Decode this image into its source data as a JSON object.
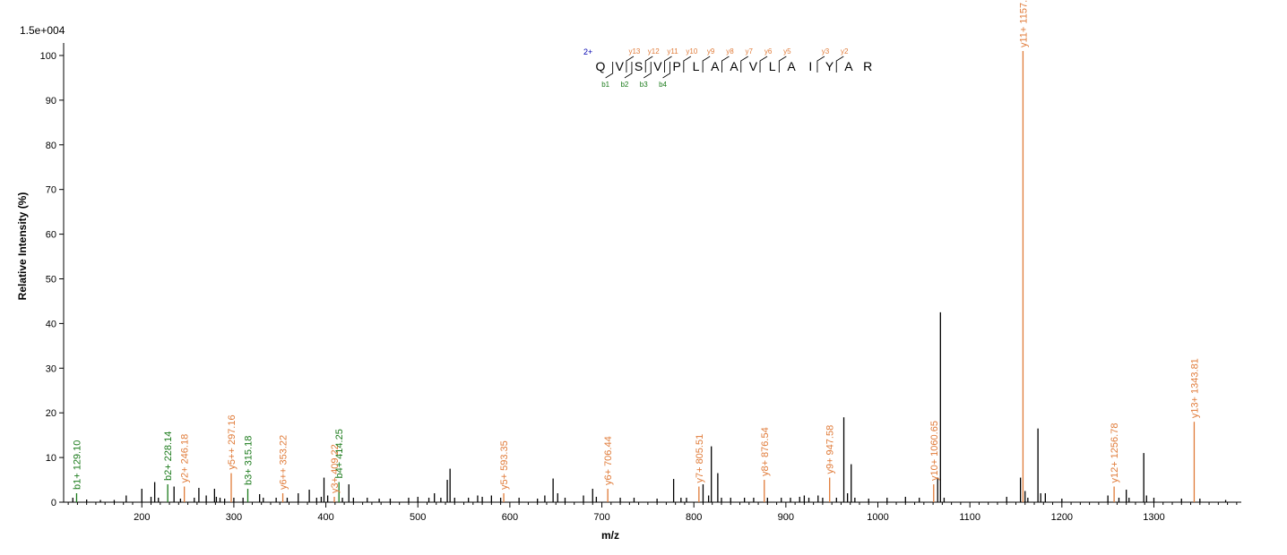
{
  "chart_data": {
    "type": "bar",
    "scale_label": "1.5e+004",
    "ylabel": "Relative   Intensity (%)",
    "xlabel": "m/z",
    "xlim": [
      115,
      1395
    ],
    "ylim": [
      0,
      102
    ],
    "xticks": [
      200,
      300,
      400,
      500,
      600,
      700,
      800,
      900,
      1000,
      1100,
      1200,
      1300
    ],
    "yticks": [
      0,
      10,
      20,
      30,
      40,
      50,
      60,
      70,
      80,
      90,
      100
    ],
    "colors": {
      "unlabeled": "#000000",
      "b_ion": "#1a7a1a",
      "y_ion": "#e07b39",
      "charge": "#0000b0"
    },
    "labeled_peaks": [
      {
        "mz": 129.1,
        "intensity": 2.0,
        "label": "b1+ 129.10",
        "type": "b"
      },
      {
        "mz": 228.14,
        "intensity": 4.0,
        "label": "b2+ 228.14",
        "type": "b"
      },
      {
        "mz": 246.18,
        "intensity": 3.5,
        "label": "y2+ 246.18",
        "type": "y"
      },
      {
        "mz": 297.16,
        "intensity": 6.5,
        "label": "y5++ 297.16",
        "type": "y"
      },
      {
        "mz": 315.18,
        "intensity": 3.0,
        "label": "b3+ 315.18",
        "type": "b"
      },
      {
        "mz": 353.22,
        "intensity": 2.0,
        "label": "y6++ 353.22",
        "type": "y"
      },
      {
        "mz": 409.22,
        "intensity": 1.2,
        "label": "y3+ 409.22",
        "type": "y"
      },
      {
        "mz": 414.25,
        "intensity": 4.5,
        "label": "b4+ 414.25",
        "type": "b"
      },
      {
        "mz": 593.35,
        "intensity": 2.0,
        "label": "y5+ 593.35",
        "type": "y"
      },
      {
        "mz": 706.44,
        "intensity": 3.0,
        "label": "y6+ 706.44",
        "type": "y"
      },
      {
        "mz": 805.51,
        "intensity": 3.5,
        "label": "y7+ 805.51",
        "type": "y"
      },
      {
        "mz": 876.54,
        "intensity": 5.0,
        "label": "y8+ 876.54",
        "type": "y"
      },
      {
        "mz": 947.58,
        "intensity": 5.5,
        "label": "y9+ 947.58",
        "type": "y"
      },
      {
        "mz": 1060.65,
        "intensity": 4.0,
        "label": "y10+ 1060.65",
        "type": "y"
      },
      {
        "mz": 1157.72,
        "intensity": 101.0,
        "label": "y11+ 1157.72",
        "type": "y"
      },
      {
        "mz": 1256.78,
        "intensity": 3.5,
        "label": "y12+ 1256.78",
        "type": "y"
      },
      {
        "mz": 1343.81,
        "intensity": 18.0,
        "label": "y13+ 1343.81",
        "type": "y"
      }
    ],
    "unlabeled_peaks": [
      [
        125,
        1.0
      ],
      [
        140,
        0.6
      ],
      [
        155,
        0.5
      ],
      [
        170,
        0.5
      ],
      [
        183,
        1.5
      ],
      [
        200,
        3.0
      ],
      [
        210,
        1.2
      ],
      [
        214,
        4.5
      ],
      [
        218,
        1.0
      ],
      [
        235,
        3.5
      ],
      [
        242,
        0.8
      ],
      [
        257,
        1.0
      ],
      [
        262,
        3.2
      ],
      [
        270,
        1.5
      ],
      [
        279,
        3.0
      ],
      [
        281,
        1.2
      ],
      [
        285,
        1.0
      ],
      [
        290,
        0.8
      ],
      [
        300,
        1.0
      ],
      [
        310,
        1.0
      ],
      [
        328,
        1.8
      ],
      [
        332,
        1.0
      ],
      [
        346,
        1.0
      ],
      [
        358,
        1.0
      ],
      [
        370,
        2.0
      ],
      [
        382,
        2.8
      ],
      [
        390,
        1.0
      ],
      [
        395,
        1.2
      ],
      [
        398,
        5.5
      ],
      [
        402,
        1.5
      ],
      [
        418,
        1.0
      ],
      [
        425,
        4.0
      ],
      [
        430,
        1.0
      ],
      [
        445,
        1.0
      ],
      [
        458,
        0.8
      ],
      [
        470,
        0.8
      ],
      [
        490,
        1.0
      ],
      [
        500,
        1.2
      ],
      [
        512,
        1.0
      ],
      [
        518,
        2.0
      ],
      [
        525,
        1.0
      ],
      [
        532,
        5.0
      ],
      [
        535,
        7.5
      ],
      [
        540,
        1.0
      ],
      [
        555,
        1.0
      ],
      [
        565,
        1.5
      ],
      [
        570,
        1.2
      ],
      [
        580,
        1.5
      ],
      [
        590,
        1.0
      ],
      [
        610,
        1.0
      ],
      [
        630,
        0.8
      ],
      [
        638,
        1.5
      ],
      [
        647,
        5.3
      ],
      [
        652,
        2.0
      ],
      [
        660,
        1.0
      ],
      [
        680,
        1.5
      ],
      [
        690,
        3.0
      ],
      [
        694,
        1.2
      ],
      [
        720,
        1.0
      ],
      [
        735,
        1.0
      ],
      [
        760,
        0.8
      ],
      [
        778,
        5.2
      ],
      [
        786,
        1.0
      ],
      [
        792,
        1.0
      ],
      [
        810,
        4.0
      ],
      [
        816,
        1.5
      ],
      [
        819,
        12.5
      ],
      [
        826,
        6.5
      ],
      [
        830,
        1.0
      ],
      [
        840,
        1.0
      ],
      [
        855,
        1.0
      ],
      [
        865,
        1.0
      ],
      [
        880,
        1.0
      ],
      [
        895,
        1.0
      ],
      [
        905,
        1.0
      ],
      [
        915,
        1.2
      ],
      [
        920,
        1.5
      ],
      [
        925,
        1.0
      ],
      [
        935,
        1.5
      ],
      [
        940,
        1.0
      ],
      [
        955,
        1.0
      ],
      [
        963,
        19.0
      ],
      [
        967,
        2.0
      ],
      [
        971,
        8.5
      ],
      [
        975,
        1.0
      ],
      [
        990,
        0.8
      ],
      [
        1010,
        1.0
      ],
      [
        1030,
        1.2
      ],
      [
        1045,
        1.0
      ],
      [
        1065,
        5.5
      ],
      [
        1068,
        42.5
      ],
      [
        1072,
        1.0
      ],
      [
        1140,
        1.2
      ],
      [
        1155,
        5.5
      ],
      [
        1160,
        2.5
      ],
      [
        1163,
        1.0
      ],
      [
        1174,
        16.5
      ],
      [
        1177,
        2.0
      ],
      [
        1182,
        2.0
      ],
      [
        1200,
        0.8
      ],
      [
        1250,
        1.5
      ],
      [
        1262,
        1.0
      ],
      [
        1270,
        2.8
      ],
      [
        1273,
        1.0
      ],
      [
        1289,
        11.0
      ],
      [
        1292,
        1.5
      ],
      [
        1300,
        1.0
      ],
      [
        1330,
        0.8
      ],
      [
        1350,
        0.8
      ],
      [
        1378,
        0.5
      ]
    ],
    "peptide": {
      "charge": "2+",
      "sequence": [
        "Q",
        "V",
        "S",
        "V",
        "P",
        "L",
        "A",
        "A",
        "V",
        "L",
        "A",
        "I",
        "Y",
        "A",
        "R"
      ],
      "y_ions": [
        {
          "label": "y13",
          "after": 1
        },
        {
          "label": "y12",
          "after": 2
        },
        {
          "label": "y11",
          "after": 3
        },
        {
          "label": "y10",
          "after": 4
        },
        {
          "label": "y9",
          "after": 5
        },
        {
          "label": "y8",
          "after": 6
        },
        {
          "label": "y7",
          "after": 7
        },
        {
          "label": "y6",
          "after": 8
        },
        {
          "label": "y5",
          "after": 9
        },
        {
          "label": "y3",
          "after": 11
        },
        {
          "label": "y2",
          "after": 12
        }
      ],
      "b_ions": [
        {
          "label": "b1",
          "after": 0
        },
        {
          "label": "b2",
          "after": 1
        },
        {
          "label": "b3",
          "after": 2
        },
        {
          "label": "b4",
          "after": 3
        }
      ]
    }
  }
}
